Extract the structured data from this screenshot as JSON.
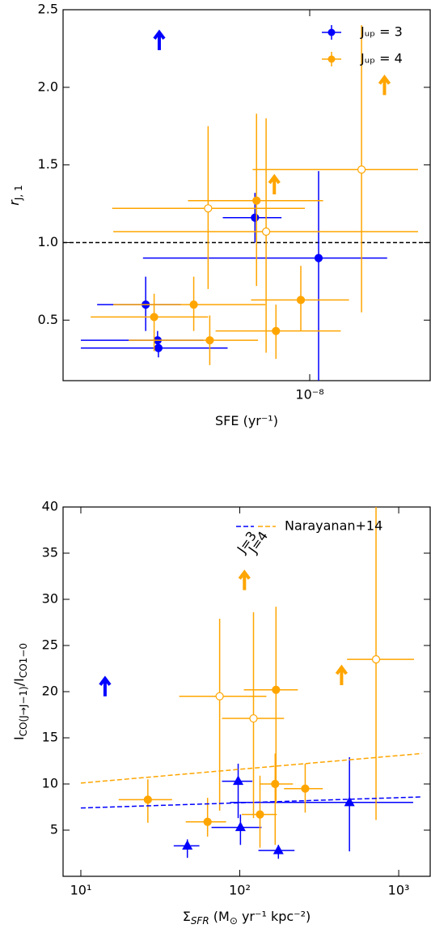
{
  "chart_data": [
    {
      "type": "errorbar",
      "xlog": true,
      "xlabel": [
        {
          "text": "SFE (yr⁻¹)"
        }
      ],
      "ylabel": [
        {
          "text": "r",
          "italic": true
        },
        {
          "text": "J, 1",
          "sub": true
        }
      ],
      "xlim": [
        2.87e-09,
        1.84e-08
      ],
      "ylim": [
        0.11,
        2.5
      ],
      "xticks": [
        {
          "value": 1e-08,
          "label": "10⁻⁸"
        }
      ],
      "yticks": [
        0.5,
        {
          "value": 1,
          "label": "1.0"
        },
        1.5,
        {
          "value": 2,
          "label": "2.0"
        },
        2.5
      ],
      "hline": 1,
      "series": [
        {
          "name": "Jᵤₚ = 3",
          "color": "#0000ff",
          "marker": "circle",
          "filled": true,
          "x": [
            4.36e-09,
            4.63e-09,
            4.65e-09,
            7.58e-09,
            1.046e-08
          ],
          "y": [
            0.6,
            0.37,
            0.32,
            1.16,
            0.9
          ],
          "xmin": [
            3.41e-09,
            3.14e-09,
            3.14e-09,
            6.44e-09,
            4.3e-09
          ],
          "xmax": [
            5.21e-09,
            5.84e-09,
            6.6e-09,
            8.67e-09,
            1.48e-08
          ],
          "ymin": [
            0.43,
            0.31,
            0.26,
            1.0,
            0.11
          ],
          "ymax": [
            0.78,
            0.43,
            0.37,
            1.32,
            1.46
          ]
        },
        {
          "name": "Jᵤₚ = 4",
          "color": "#ffa500",
          "marker": "circle",
          "filled": true,
          "x": [
            4.55e-09,
            5.56e-09,
            6.03e-09,
            7.64e-09,
            8.43e-09,
            9.56e-09
          ],
          "y": [
            0.52,
            0.6,
            0.37,
            1.27,
            0.43,
            0.63
          ],
          "xmin": [
            3.3e-09,
            3.7e-09,
            4e-09,
            5.4e-09,
            6.21e-09,
            7.43e-09
          ],
          "xmax": [
            5.98e-09,
            7.99e-09,
            7.7e-09,
            1.07e-08,
            1.17e-08,
            1.22e-08
          ],
          "ymin": [
            0.3,
            0.43,
            0.21,
            0.72,
            0.25,
            0.43
          ],
          "ymax": [
            0.67,
            0.78,
            0.53,
            1.83,
            0.6,
            0.85
          ]
        },
        {
          "color": "#ffa500",
          "marker": "circle",
          "filled": false,
          "x": [
            5.98e-09,
            8.02e-09,
            1.3e-08
          ],
          "y": [
            1.22,
            1.07,
            1.47
          ],
          "xmin": [
            3.68e-09,
            3.7e-09,
            7.49e-09
          ],
          "xmax": [
            9.76e-09,
            1.73e-08,
            1.73e-08
          ],
          "ymin": [
            0.7,
            0.29,
            0.55
          ],
          "ymax": [
            1.75,
            1.8,
            2.4
          ]
        },
        {
          "color": "#0000ff",
          "marker": "arrow",
          "x": [
            4.67e-09
          ],
          "y": [
            2.24
          ]
        },
        {
          "color": "#ffa500",
          "marker": "arrow",
          "x": [
            8.36e-09,
            1.46e-08
          ],
          "y": [
            1.31,
            1.95
          ]
        }
      ]
    },
    {
      "type": "errorbar",
      "xlog": true,
      "xlabel": [
        {
          "text": "Σ"
        },
        {
          "text": "SFR",
          "sub": true,
          "italic": true
        },
        {
          "text": " (M"
        },
        {
          "text": "⊙",
          "sub": true
        },
        {
          "text": " yr⁻¹ kpc⁻²)"
        }
      ],
      "ylabel": [
        {
          "text": "I"
        },
        {
          "text": "CO(J→J−1)",
          "sub": true
        },
        {
          "text": "/I"
        },
        {
          "text": "CO1−0",
          "sub": true
        }
      ],
      "xlim": [
        7.73,
        1578
      ],
      "ylim": [
        0,
        40
      ],
      "xticks": [
        {
          "value": 10,
          "label": "10¹"
        },
        {
          "value": 100,
          "label": "10²"
        },
        {
          "value": 1000,
          "label": "10³"
        }
      ],
      "yticks": [
        5,
        10,
        15,
        20,
        25,
        30,
        35,
        40
      ],
      "legend": {
        "label": "Narayanan+14",
        "annotations": [
          "J=3",
          "J=4"
        ]
      },
      "series": [
        {
          "color": "#0000ff",
          "marker": "triangle",
          "filled": true,
          "x": [
            46.8,
            97.7,
            101,
            175,
            490
          ],
          "y": [
            3.3,
            10.3,
            5.3,
            2.8,
            8.0
          ],
          "xmin": [
            38.4,
            77.3,
            66.4,
            131,
            86.9
          ],
          "xmax": [
            55.7,
            120,
            137,
            221,
            1233
          ],
          "ymin": [
            2.0,
            6.3,
            3.4,
            1.9,
            2.7
          ],
          "ymax": [
            4.0,
            12.2,
            6.7,
            3.4,
            12.9
          ]
        },
        {
          "color": "#ffa500",
          "marker": "circle",
          "filled": true,
          "x": [
            26.4,
            62.7,
            134,
            167,
            169,
            258
          ],
          "y": [
            8.3,
            5.9,
            6.7,
            10.0,
            20.2,
            9.5
          ],
          "xmin": [
            17.3,
            45.7,
            103,
            134,
            106,
            190
          ],
          "xmax": [
            37.5,
            82,
            171,
            216,
            232,
            333
          ],
          "ymin": [
            5.8,
            4.3,
            3.1,
            3.4,
            7.9,
            6.9
          ],
          "ymax": [
            10.5,
            8.5,
            10.9,
            13.3,
            29.2,
            12.2
          ]
        },
        {
          "color": "#ffa500",
          "marker": "circle",
          "filled": false,
          "x": [
            74.7,
            122,
            720
          ],
          "y": [
            19.5,
            17.1,
            23.5
          ],
          "xmin": [
            41.6,
            77.3,
            473
          ],
          "xmax": [
            147,
            190,
            1248
          ],
          "ymin": [
            7.1,
            6.3,
            6.1
          ],
          "ymax": [
            27.9,
            28.6,
            40
          ]
        },
        {
          "color": "#0000ff",
          "marker": "arrow",
          "x": [
            14.2
          ],
          "y": [
            19.5
          ]
        },
        {
          "color": "#ffa500",
          "marker": "arrow",
          "x": [
            107,
            437
          ],
          "y": [
            31.0,
            20.7
          ]
        },
        {
          "color": "#0000ff",
          "marker": "line",
          "x": [
            10,
            1400
          ],
          "y": [
            7.4,
            8.6
          ]
        },
        {
          "color": "#ffa500",
          "marker": "line",
          "x": [
            10,
            1400
          ],
          "y": [
            10.1,
            13.3
          ]
        }
      ]
    }
  ]
}
